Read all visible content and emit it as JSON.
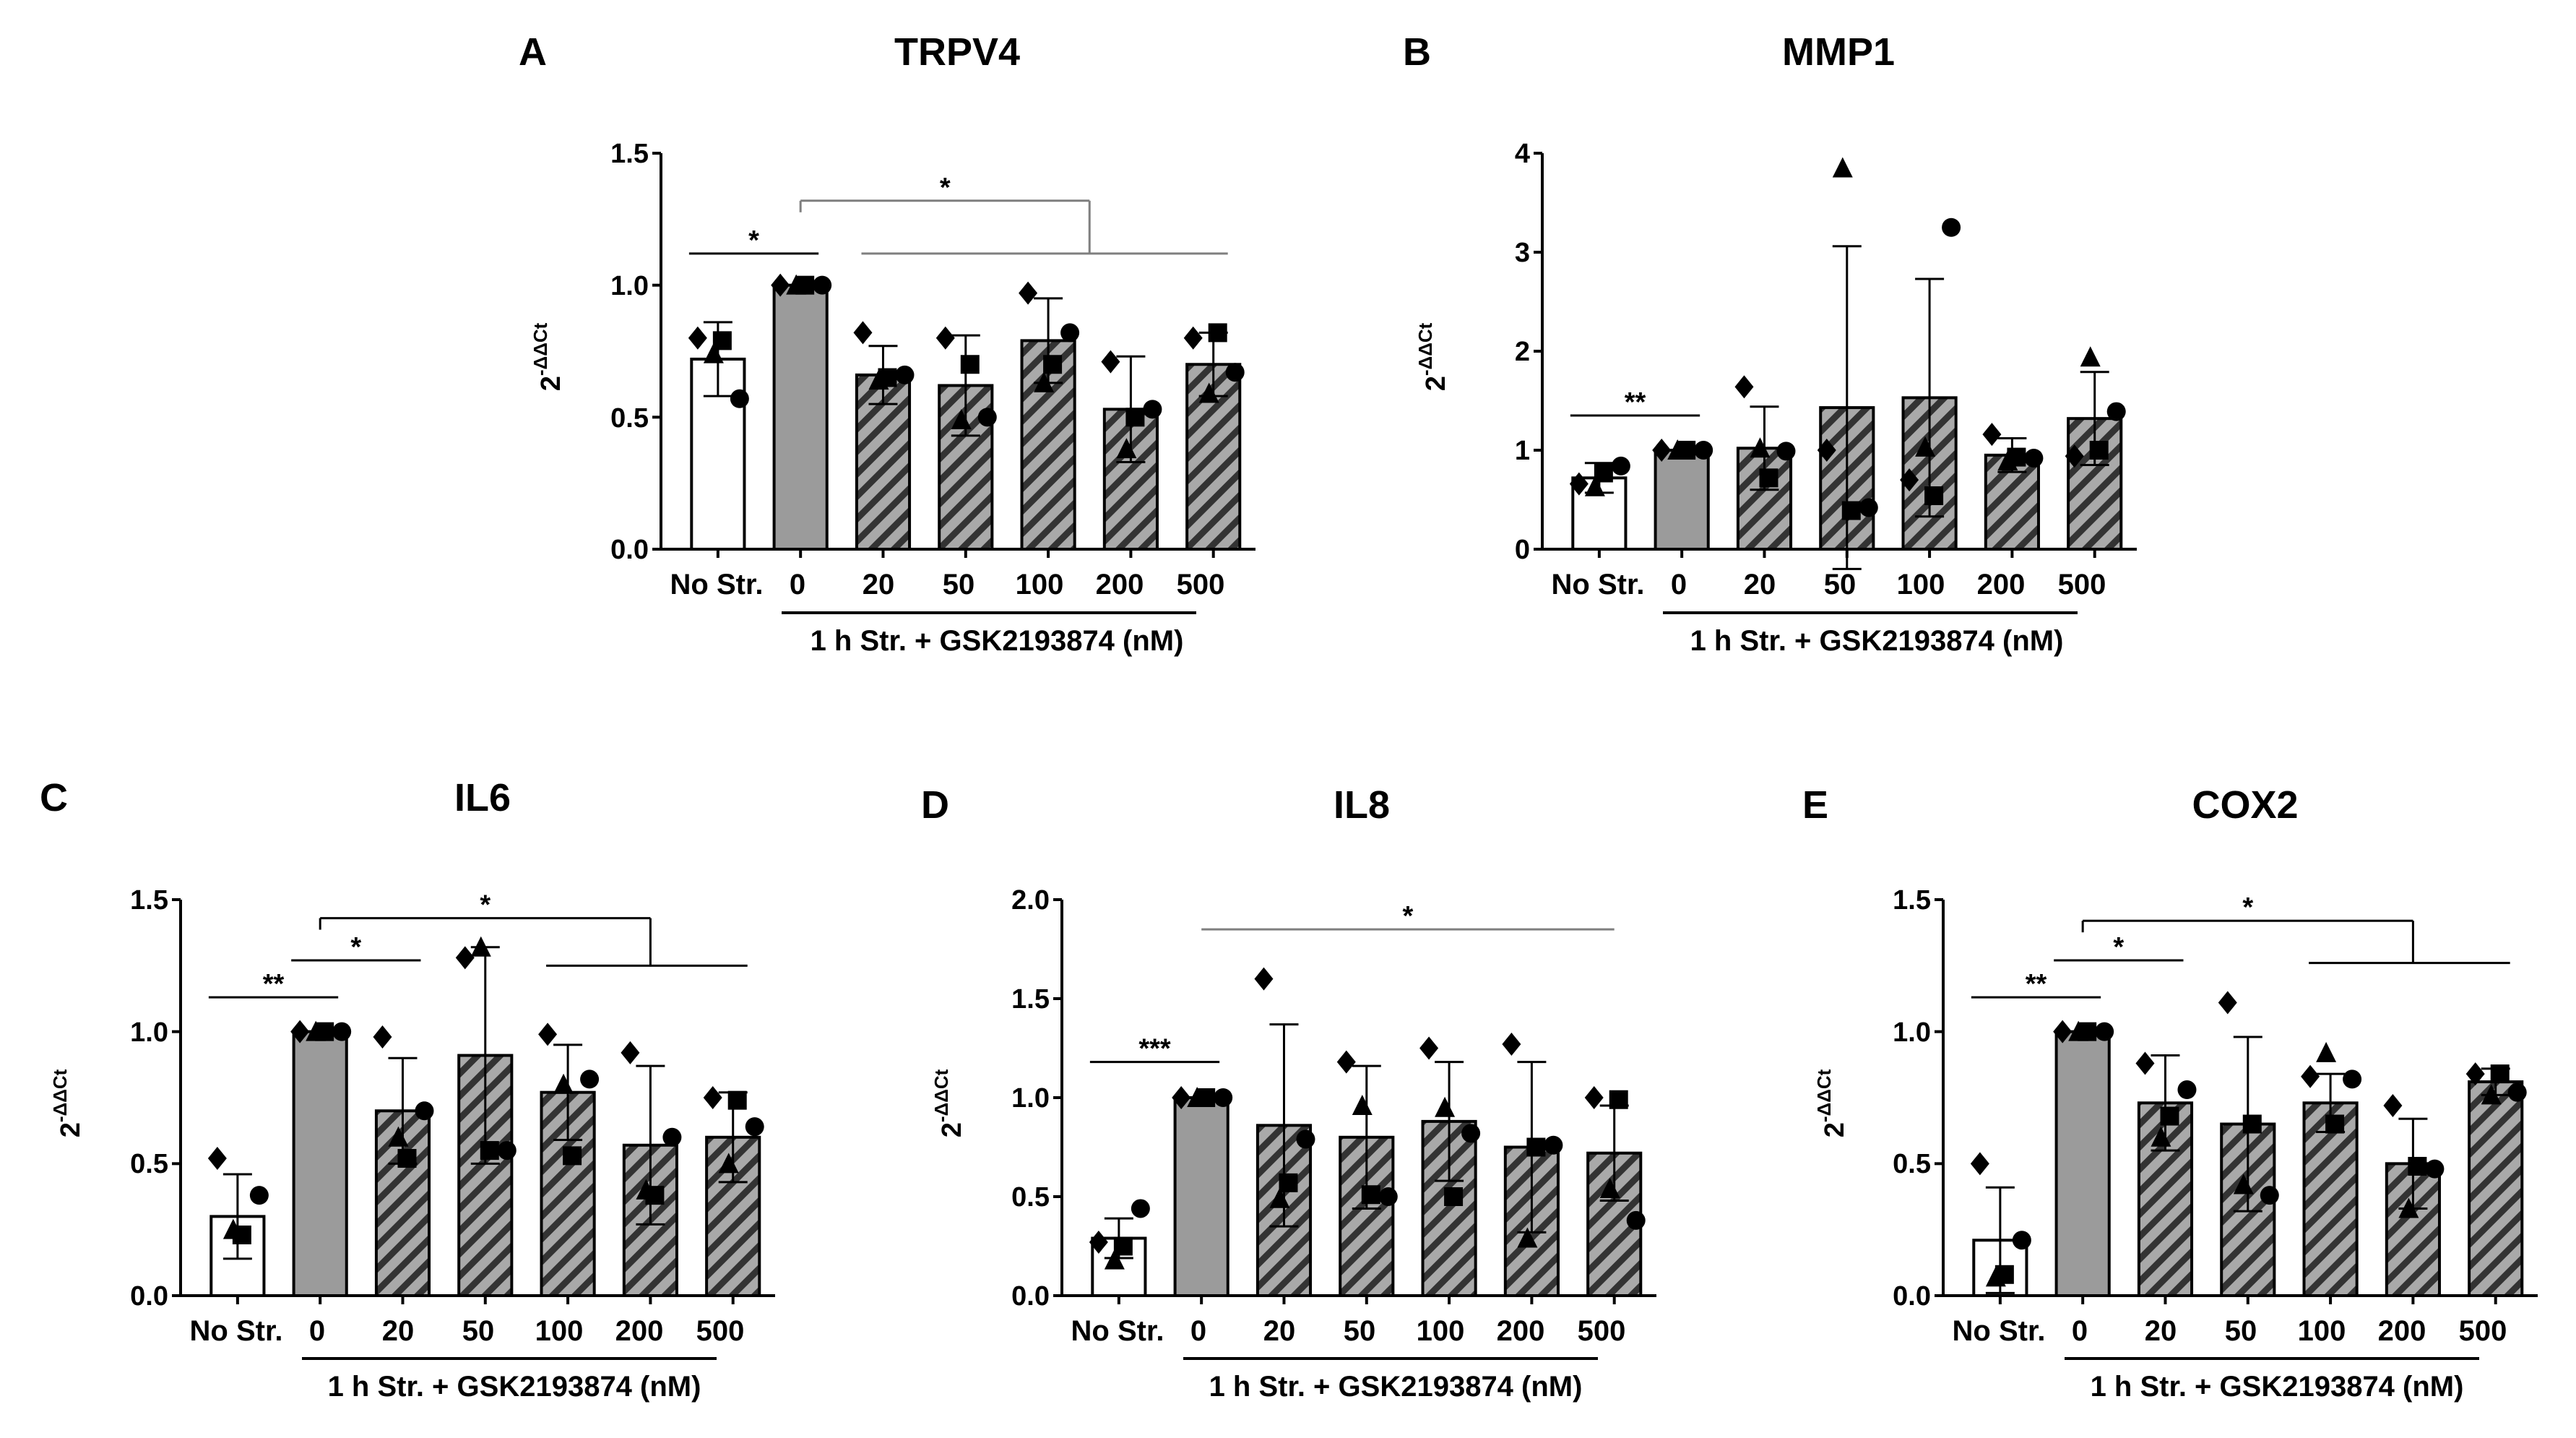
{
  "figure": {
    "x_axis_categories": [
      "No Str.",
      "0",
      "20",
      "50",
      "100",
      "200",
      "500"
    ],
    "x_axis_group_label": "1 h Str. + GSK2193874 (nM)",
    "y_axis_label_base": "2",
    "y_axis_label_exponent": "-ΔΔCt",
    "colors": {
      "no_stress": "#ffffff",
      "stress": "#9b9b9b",
      "treated": "#a9a9a9",
      "hatch": "#333333",
      "sig_gray": "#7f7f7f"
    }
  },
  "chart_data": [
    {
      "panel": "A",
      "title": "TRPV4",
      "type": "bar",
      "categories": [
        "No Str.",
        "0",
        "20",
        "50",
        "100",
        "200",
        "500"
      ],
      "values": [
        0.72,
        1.0,
        0.66,
        0.62,
        0.79,
        0.53,
        0.7
      ],
      "errors": [
        0.14,
        0.0,
        0.11,
        0.19,
        0.16,
        0.2,
        0.12
      ],
      "ylim": [
        0,
        1.5
      ],
      "yticks": [
        "0.0",
        "0.5",
        "1.0",
        "1.5"
      ],
      "ytick_values": [
        0,
        0.5,
        1.0,
        1.5
      ],
      "points": [
        [
          0.8,
          0.79,
          0.74,
          0.57
        ],
        [
          1.0,
          1.0,
          1.0,
          1.0
        ],
        [
          0.82,
          0.65,
          0.64,
          0.66
        ],
        [
          0.8,
          0.7,
          0.49,
          0.5
        ],
        [
          0.97,
          0.7,
          0.63,
          0.82
        ],
        [
          0.71,
          0.5,
          0.38,
          0.53
        ],
        [
          0.8,
          0.82,
          0.59,
          0.67
        ]
      ],
      "shapes": [
        "diamond",
        "square",
        "triangle",
        "circle"
      ],
      "significance": [
        {
          "label": "*",
          "type": "simple",
          "from": 0,
          "to": 1,
          "y": 1.12
        },
        {
          "label": "*",
          "type": "bracket",
          "from": 1,
          "stem": 4.5,
          "groupFrom": 2,
          "groupTo": 6,
          "y": 1.32,
          "groupY": 1.12,
          "color": "#7f7f7f"
        }
      ]
    },
    {
      "panel": "B",
      "title": "MMP1",
      "type": "bar",
      "categories": [
        "No Str.",
        "0",
        "20",
        "50",
        "100",
        "200",
        "500"
      ],
      "values": [
        0.72,
        1.0,
        1.02,
        1.43,
        1.53,
        0.95,
        1.32
      ],
      "errors": [
        0.15,
        0.0,
        0.42,
        1.63,
        1.2,
        0.17,
        0.47
      ],
      "ylim": [
        0,
        4
      ],
      "yticks": [
        "0",
        "1",
        "2",
        "3",
        "4"
      ],
      "ytick_values": [
        0,
        1,
        2,
        3,
        4
      ],
      "points": [
        [
          0.66,
          0.77,
          0.63,
          0.84
        ],
        [
          1.0,
          1.0,
          1.0,
          1.0
        ],
        [
          1.64,
          0.72,
          1.02,
          0.99
        ],
        [
          1.0,
          0.39,
          3.85,
          0.42
        ],
        [
          0.7,
          0.54,
          1.03,
          3.25
        ],
        [
          1.16,
          0.93,
          0.89,
          0.92
        ],
        [
          0.94,
          1.0,
          1.94,
          1.39
        ]
      ],
      "shapes": [
        "diamond",
        "square",
        "triangle",
        "circle"
      ],
      "significance": [
        {
          "label": "**",
          "type": "simple",
          "from": 0,
          "to": 1,
          "y": 1.35
        }
      ]
    },
    {
      "panel": "C",
      "title": "IL6",
      "type": "bar",
      "categories": [
        "No Str.",
        "0",
        "20",
        "50",
        "100",
        "200",
        "500"
      ],
      "values": [
        0.3,
        1.0,
        0.7,
        0.91,
        0.77,
        0.57,
        0.6
      ],
      "errors": [
        0.16,
        0.0,
        0.2,
        0.41,
        0.18,
        0.3,
        0.17
      ],
      "ylim": [
        0,
        1.5
      ],
      "yticks": [
        "0.0",
        "0.5",
        "1.0",
        "1.5"
      ],
      "ytick_values": [
        0,
        0.5,
        1.0,
        1.5
      ],
      "points": [
        [
          0.52,
          0.23,
          0.25,
          0.38
        ],
        [
          1.0,
          1.0,
          1.0,
          1.0
        ],
        [
          0.98,
          0.52,
          0.6,
          0.7
        ],
        [
          1.28,
          0.55,
          1.32,
          0.55
        ],
        [
          0.99,
          0.53,
          0.8,
          0.82
        ],
        [
          0.92,
          0.38,
          0.4,
          0.6
        ],
        [
          0.75,
          0.74,
          0.5,
          0.64
        ]
      ],
      "shapes": [
        "diamond",
        "square",
        "triangle",
        "circle"
      ],
      "significance": [
        {
          "label": "**",
          "type": "simple",
          "from": 0,
          "to": 1,
          "y": 1.13
        },
        {
          "label": "*",
          "type": "simple",
          "from": 1,
          "to": 2,
          "y": 1.27
        },
        {
          "label": "*",
          "type": "bracket",
          "from": 1,
          "stem": 5.0,
          "groupFrom": 4,
          "groupTo": 6,
          "y": 1.43,
          "groupY": 1.25,
          "color": "#000000"
        }
      ]
    },
    {
      "panel": "D",
      "title": "IL8",
      "type": "bar",
      "categories": [
        "No Str.",
        "0",
        "20",
        "50",
        "100",
        "200",
        "500"
      ],
      "values": [
        0.29,
        1.0,
        0.86,
        0.8,
        0.88,
        0.75,
        0.72
      ],
      "errors": [
        0.1,
        0.0,
        0.51,
        0.36,
        0.3,
        0.43,
        0.24
      ],
      "ylim": [
        0,
        2.0
      ],
      "yticks": [
        "0.0",
        "0.5",
        "1.0",
        "1.5",
        "2.0"
      ],
      "ytick_values": [
        0,
        0.5,
        1.0,
        1.5,
        2.0
      ],
      "points": [
        [
          0.27,
          0.25,
          0.18,
          0.44
        ],
        [
          1.0,
          1.0,
          1.0,
          1.0
        ],
        [
          1.6,
          0.57,
          0.49,
          0.79
        ],
        [
          1.18,
          0.51,
          0.96,
          0.5
        ],
        [
          1.25,
          0.5,
          0.95,
          0.82
        ],
        [
          1.27,
          0.75,
          0.29,
          0.76
        ],
        [
          1.0,
          0.99,
          0.54,
          0.38
        ]
      ],
      "shapes": [
        "diamond",
        "square",
        "triangle",
        "circle"
      ],
      "significance": [
        {
          "label": "***",
          "type": "simple",
          "from": 0,
          "to": 1,
          "y": 1.18
        },
        {
          "label": "*",
          "type": "line",
          "from": 1,
          "to": 6,
          "y": 1.85,
          "color": "#7f7f7f"
        }
      ]
    },
    {
      "panel": "E",
      "title": "COX2",
      "type": "bar",
      "categories": [
        "No Str.",
        "0",
        "20",
        "50",
        "100",
        "200",
        "500"
      ],
      "values": [
        0.21,
        1.0,
        0.73,
        0.65,
        0.73,
        0.5,
        0.81
      ],
      "errors": [
        0.2,
        0.0,
        0.18,
        0.33,
        0.11,
        0.17,
        0.05
      ],
      "ylim": [
        0,
        1.5
      ],
      "yticks": [
        "0.0",
        "0.5",
        "1.0",
        "1.5"
      ],
      "ytick_values": [
        0,
        0.5,
        1.0,
        1.5
      ],
      "points": [
        [
          0.5,
          0.08,
          0.07,
          0.21
        ],
        [
          1.0,
          1.0,
          1.0,
          1.0
        ],
        [
          0.88,
          0.68,
          0.6,
          0.78
        ],
        [
          1.11,
          0.65,
          0.42,
          0.38
        ],
        [
          0.83,
          0.65,
          0.92,
          0.82
        ],
        [
          0.72,
          0.49,
          0.33,
          0.48
        ],
        [
          0.84,
          0.84,
          0.76,
          0.77
        ]
      ],
      "shapes": [
        "diamond",
        "square",
        "triangle",
        "circle"
      ],
      "significance": [
        {
          "label": "**",
          "type": "simple",
          "from": 0,
          "to": 1,
          "y": 1.13
        },
        {
          "label": "*",
          "type": "simple",
          "from": 1,
          "to": 2,
          "y": 1.27
        },
        {
          "label": "*",
          "type": "bracket",
          "from": 1,
          "stem": 5.0,
          "groupFrom": 4,
          "groupTo": 6,
          "y": 1.42,
          "groupY": 1.26,
          "color": "#000000"
        }
      ]
    }
  ]
}
